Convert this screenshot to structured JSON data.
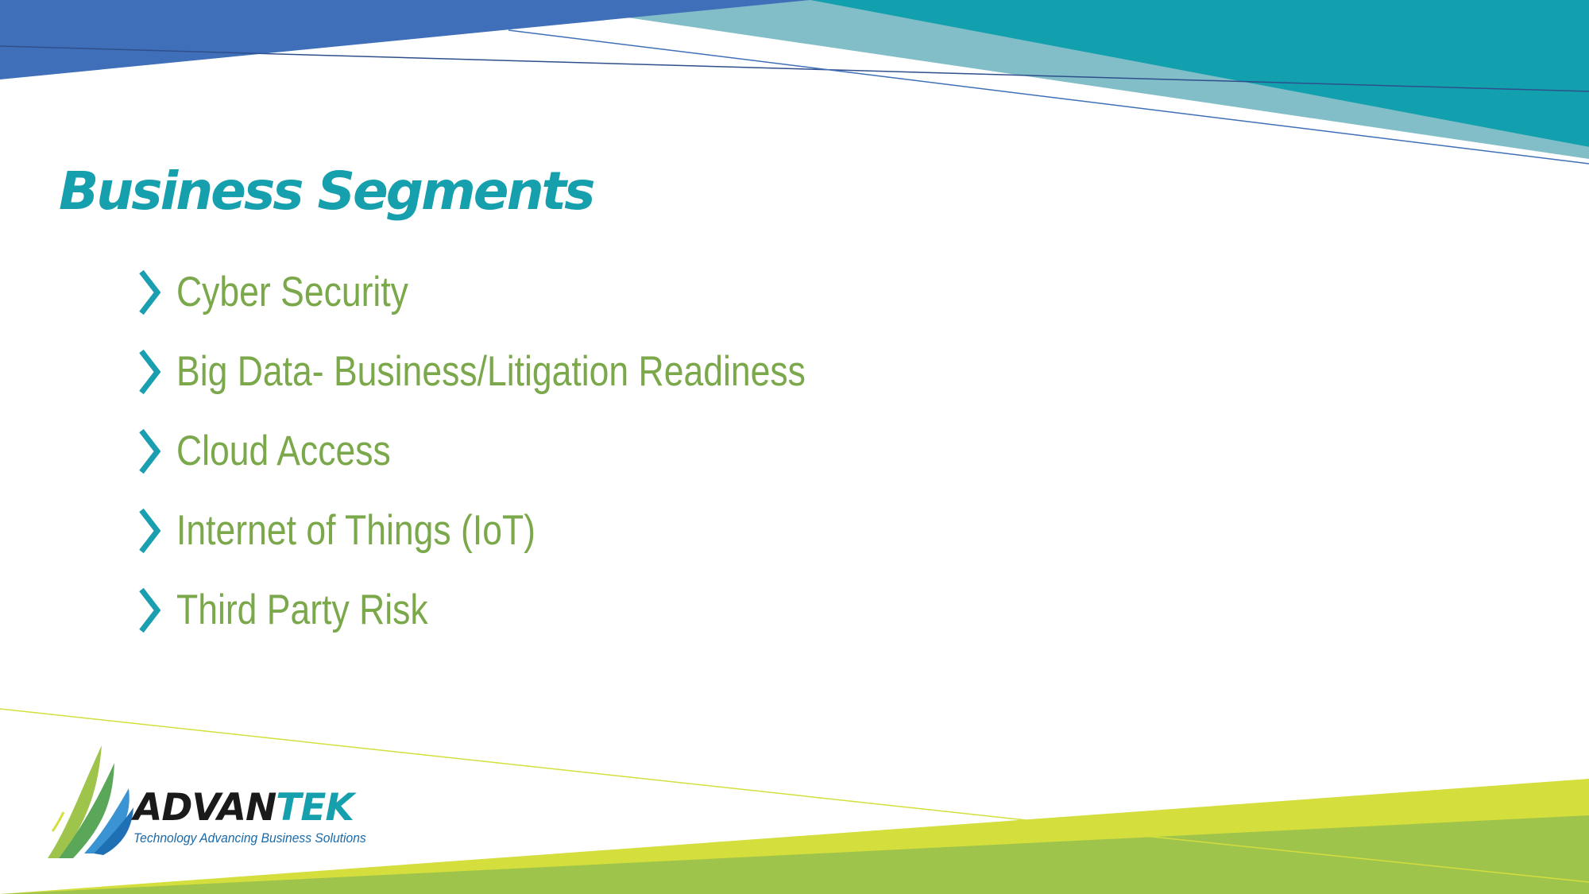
{
  "slide": {
    "title": "Business Segments",
    "bullets": [
      "Cyber Security",
      "Big Data- Business/Litigation Readiness",
      "Cloud Access",
      "Internet of Things (IoT)",
      "Third Party Risk"
    ]
  },
  "logo": {
    "word_prefix": "ADVAN",
    "word_suffix": "TEK",
    "tagline": "Technology Advancing Business Solutions"
  },
  "colors": {
    "title": "#16a0ad",
    "bullet_text": "#7aa84a",
    "chevron": "#1a9fb0",
    "banner_blue": "#3f6fb8",
    "banner_teal": "#12a0ae",
    "banner_light_teal": "#82bec8",
    "footer_lime": "#d4de3c",
    "footer_green": "#9ec44c",
    "logo_dark": "#1a1a1a",
    "logo_teal": "#16a0ad",
    "logo_tagline": "#1a6aa8"
  },
  "icons": {
    "bullet_marker": "chevron-right-icon",
    "logo_mark": "advantek-swoosh-logo"
  }
}
